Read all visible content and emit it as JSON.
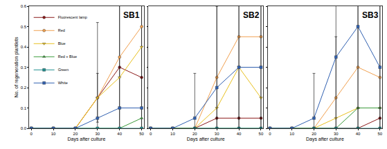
{
  "chart_data": [
    {
      "type": "line",
      "title": "SB1",
      "x_label": "Days after culture",
      "y_label": "No. of regeneration plantlets",
      "x": [
        0,
        10,
        20,
        30,
        40,
        50
      ],
      "xlim": [
        -1,
        51
      ],
      "xticks": [
        0,
        10,
        20,
        30,
        40,
        50
      ],
      "ylim": [
        0,
        0.6
      ],
      "yticks": [
        {
          "value": 0,
          "label": "0.0"
        },
        {
          "value": 0.1,
          "label": "0.1"
        },
        {
          "value": 0.2,
          "label": "0.2"
        },
        {
          "value": 0.3,
          "label": "0.3"
        },
        {
          "value": 0.4,
          "label": "0.4"
        },
        {
          "value": 0.5,
          "label": "0.5"
        },
        {
          "value": 0.6,
          "label": "0.6"
        }
      ],
      "grid": false,
      "legend": "top left",
      "series": [
        {
          "name": "Fluorescent lamp",
          "color": "#8b1a1a",
          "marker": "circle",
          "values": [
            0,
            0,
            0,
            0.15,
            0.3,
            0.25
          ],
          "error": [
            0,
            0,
            0,
            0.12,
            0.35,
            0.45
          ]
        },
        {
          "name": "Red",
          "color": "#f0a050",
          "marker": "circle",
          "values": [
            0,
            0,
            0,
            0.15,
            0.35,
            0.5
          ],
          "error": [
            0,
            0,
            0,
            0.37,
            0.5,
            0.7
          ]
        },
        {
          "name": "Blue",
          "color": "#e8c020",
          "marker": "triangle-down",
          "values": [
            0,
            0,
            0,
            0.15,
            0.25,
            0.4
          ]
        },
        {
          "name": "Red + Blue",
          "color": "#3a9a3a",
          "marker": "triangle-up",
          "values": [
            0,
            0,
            0,
            0,
            0,
            0.05
          ]
        },
        {
          "name": "Green",
          "color": "#1f8f8f",
          "marker": "square",
          "values": [
            0,
            0,
            0,
            0,
            0,
            0
          ]
        },
        {
          "name": "White",
          "color": "#3060b0",
          "marker": "square",
          "values": [
            0,
            0,
            0,
            0.05,
            0.1,
            0.1
          ]
        }
      ]
    },
    {
      "type": "line",
      "title": "SB2",
      "x_label": "Days after culture",
      "x": [
        0,
        10,
        20,
        30,
        40,
        50
      ],
      "xlim": [
        -1,
        51
      ],
      "xticks": [
        0,
        10,
        20,
        30,
        40,
        50
      ],
      "ylim": [
        0,
        0.6
      ],
      "yticks": [
        0,
        0.1,
        0.2,
        0.3,
        0.4,
        0.5,
        0.6
      ],
      "grid": false,
      "tick_labels": "x",
      "series": [
        {
          "name": "Fluorescent lamp",
          "color": "#8b1a1a",
          "marker": "circle",
          "values": [
            0,
            0,
            0,
            0.05,
            0.05,
            0.05
          ]
        },
        {
          "name": "Red",
          "color": "#f0a050",
          "marker": "circle",
          "values": [
            0,
            0,
            0,
            0.25,
            0.45,
            0.45
          ],
          "error": [
            0,
            0,
            0,
            0.45,
            0.7,
            0.7
          ]
        },
        {
          "name": "Blue",
          "color": "#e8c020",
          "marker": "triangle-down",
          "values": [
            0,
            0,
            0,
            0.1,
            0.3,
            0.15
          ]
        },
        {
          "name": "Red + Blue",
          "color": "#3a9a3a",
          "marker": "triangle-up",
          "values": [
            0,
            0,
            0,
            0,
            0,
            0
          ]
        },
        {
          "name": "Green",
          "color": "#1f8f8f",
          "marker": "square",
          "values": [
            0,
            0,
            0,
            0,
            0,
            0
          ]
        },
        {
          "name": "White",
          "color": "#3060b0",
          "marker": "square",
          "values": [
            0,
            0,
            0.05,
            0.2,
            0.3,
            0.3
          ],
          "error": [
            0,
            0,
            0.22,
            0.4,
            0.6,
            0.6
          ]
        }
      ]
    },
    {
      "type": "line",
      "title": "SB3",
      "x_label": "Days after culture",
      "x": [
        0,
        10,
        20,
        30,
        40,
        50
      ],
      "xlim": [
        -1,
        51
      ],
      "xticks": [
        0,
        10,
        20,
        30,
        40,
        50
      ],
      "ylim": [
        0,
        0.6
      ],
      "yticks": [
        0,
        0.1,
        0.2,
        0.3,
        0.4,
        0.5,
        0.6
      ],
      "grid": false,
      "tick_labels": "x",
      "series": [
        {
          "name": "Fluorescent lamp",
          "color": "#8b1a1a",
          "marker": "circle",
          "values": [
            0,
            0,
            0,
            0,
            0,
            0.05
          ]
        },
        {
          "name": "Red",
          "color": "#f0a050",
          "marker": "circle",
          "values": [
            0,
            0,
            0,
            0.15,
            0.3,
            0.25
          ],
          "error": [
            0,
            0,
            0,
            0.3,
            0.55,
            0.55
          ]
        },
        {
          "name": "Blue",
          "color": "#e8c020",
          "marker": "triangle-down",
          "values": [
            0,
            0,
            0,
            0.05,
            0.1,
            0.1
          ]
        },
        {
          "name": "Red + Blue",
          "color": "#3a9a3a",
          "marker": "triangle-up",
          "values": [
            0,
            0,
            0,
            0,
            0.1,
            0.1
          ]
        },
        {
          "name": "Green",
          "color": "#1f8f8f",
          "marker": "square",
          "values": [
            0,
            0,
            0,
            0,
            0,
            0
          ]
        },
        {
          "name": "White",
          "color": "#3060b0",
          "marker": "square",
          "values": [
            0,
            0,
            0.05,
            0.35,
            0.5,
            0.3
          ],
          "error": [
            0,
            0,
            0.22,
            0.58,
            0.7,
            0.6
          ]
        }
      ]
    }
  ]
}
